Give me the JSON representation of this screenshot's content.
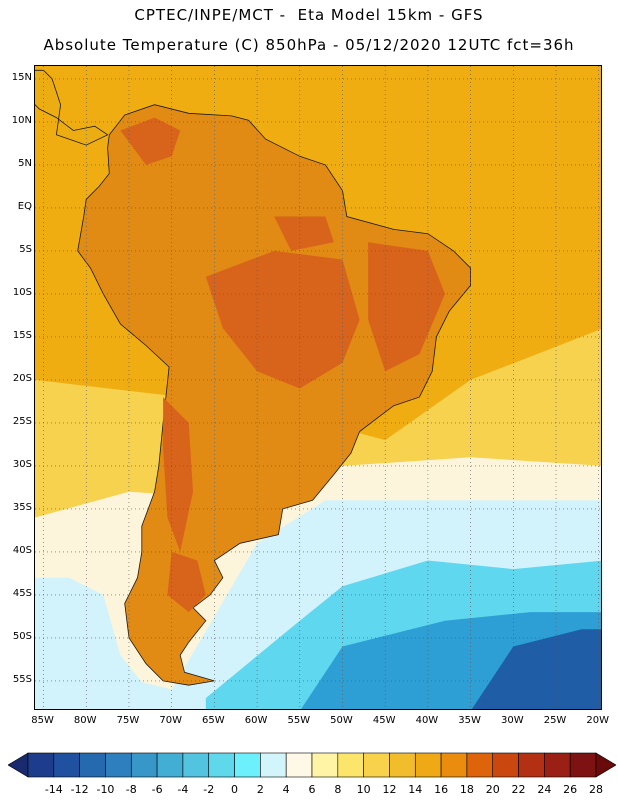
{
  "header": {
    "line1": "CPTEC/INPE/MCT -  Eta Model 15km - GFS",
    "line2": "Absolute Temperature (C) 850hPa - 05/12/2020 12UTC fct=36h"
  },
  "map": {
    "latitude_labels": [
      "15N",
      "10N",
      "5N",
      "EQ",
      "5S",
      "10S",
      "15S",
      "20S",
      "25S",
      "30S",
      "35S",
      "40S",
      "45S",
      "50S",
      "55S"
    ],
    "longitude_labels": [
      "85W",
      "80W",
      "75W",
      "70W",
      "65W",
      "60W",
      "55W",
      "50W",
      "45W",
      "40W",
      "35W",
      "30W",
      "25W",
      "20W"
    ],
    "lat_range": [
      16.5,
      -58.5
    ],
    "lon_range": [
      -86,
      -19.5
    ],
    "land_colors": {
      "hot": "#d8641c",
      "warm": "#e18a14",
      "mild": "#ecad12"
    },
    "ocean_colors": {
      "tropical": "#f0ad12",
      "subtropical": "#f6d24e",
      "temperate": "#fdf4dc",
      "cool": "#d2f3fb",
      "cold": "#5fd7ef",
      "colder": "#2d9fd4",
      "coldest": "#1f5ea6"
    }
  },
  "colorbar": {
    "ticks": [
      "-14",
      "-12",
      "-10",
      "-8",
      "-6",
      "-4",
      "-2",
      "0",
      "2",
      "4",
      "6",
      "8",
      "10",
      "12",
      "14",
      "16",
      "18",
      "20",
      "22",
      "24",
      "26",
      "28"
    ],
    "colors": [
      "#1d3c8c",
      "#2050a0",
      "#256aae",
      "#2d80bd",
      "#3697c8",
      "#43aed3",
      "#52c4df",
      "#5fd8ec",
      "#6cf0fb",
      "#d2f5fc",
      "#fff8e6",
      "#fff4a6",
      "#fbe56a",
      "#f7d24a",
      "#f2bd2c",
      "#efa816",
      "#ea8c0e",
      "#de640c",
      "#ca4810",
      "#b43014",
      "#9a1f14",
      "#7e1212"
    ],
    "left_arrow_color": "#1a2a6e",
    "right_arrow_color": "#6a0a0a"
  }
}
